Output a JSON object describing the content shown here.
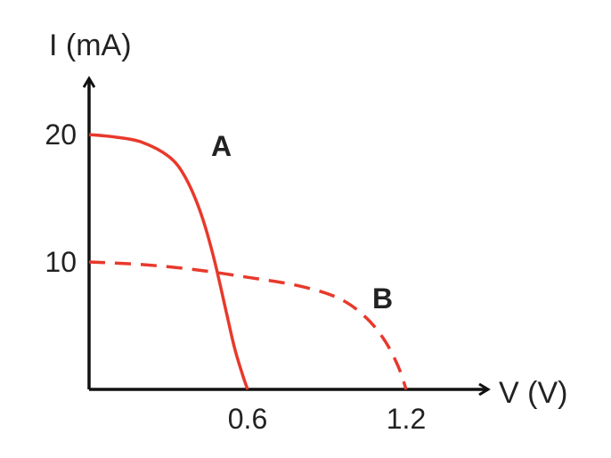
{
  "chart_data": {
    "type": "line",
    "xlabel": "V (V)",
    "ylabel": "I (mA)",
    "x_ticks": [
      {
        "value": 0.6,
        "label": "0.6"
      },
      {
        "value": 1.2,
        "label": "1.2"
      }
    ],
    "y_ticks": [
      {
        "value": 10,
        "label": "10"
      },
      {
        "value": 20,
        "label": "20"
      }
    ],
    "xlim": [
      0,
      1.5
    ],
    "ylim": [
      0,
      24
    ],
    "grid": false,
    "colors": {
      "curve": "#e8392b",
      "axis": "#111111"
    },
    "series": [
      {
        "name": "A",
        "style": "solid",
        "x": [
          0,
          0.1,
          0.2,
          0.3,
          0.36,
          0.42,
          0.47,
          0.52,
          0.55,
          0.58,
          0.6
        ],
        "y": [
          20,
          19.8,
          19.4,
          18.3,
          16.8,
          14.0,
          10.5,
          6.0,
          3.3,
          1.2,
          0
        ]
      },
      {
        "name": "B",
        "style": "dashed",
        "x": [
          0,
          0.2,
          0.4,
          0.6,
          0.8,
          0.95,
          1.05,
          1.12,
          1.17,
          1.2
        ],
        "y": [
          10,
          9.8,
          9.4,
          8.8,
          8.1,
          7.1,
          5.6,
          3.8,
          1.8,
          0
        ]
      }
    ]
  }
}
